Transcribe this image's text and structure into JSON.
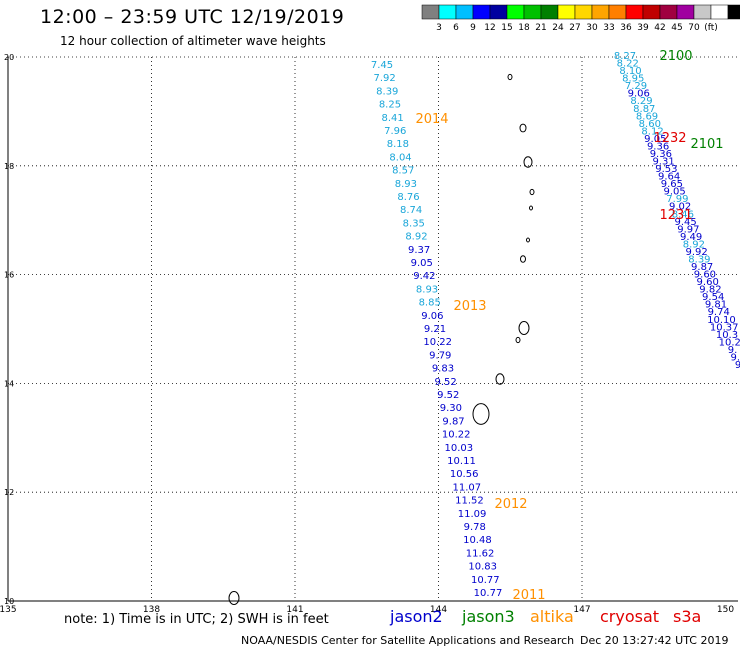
{
  "title": "12:00 – 23:59 UTC 12/19/2019",
  "subtitle": "12 hour collection of altimeter wave heights",
  "colorbar": {
    "colors": [
      "#808080",
      "#00ffff",
      "#00bfff",
      "#0000ff",
      "#0000a0",
      "#00ff00",
      "#00c000",
      "#008000",
      "#ffff00",
      "#ffd700",
      "#ffa500",
      "#ff7f00",
      "#ff0000",
      "#c00000",
      "#a00040",
      "#a000a0",
      "#c8c8c8",
      "#ffffff",
      "#000000"
    ],
    "labels": [
      "3",
      "6",
      "9",
      "12",
      "15",
      "18",
      "21",
      "24",
      "27",
      "30",
      "33",
      "36",
      "39",
      "42",
      "45",
      "70",
      "(ft)"
    ]
  },
  "lon_labels": [
    "135",
    "138",
    "141",
    "144",
    "147",
    "150"
  ],
  "lat_labels": [
    "20",
    "18",
    "16",
    "14",
    "12",
    "10"
  ],
  "colors": {
    "cyan": "#1aa6d9",
    "blue": "#0000cc",
    "orange": "#ff9000",
    "green": "#008000",
    "red": "#e00000"
  },
  "track_labels": [
    {
      "text": "2014",
      "color": "orange"
    },
    {
      "text": "2013",
      "color": "orange"
    },
    {
      "text": "2012",
      "color": "orange"
    },
    {
      "text": "2011",
      "color": "orange"
    },
    {
      "text": "2100",
      "color": "green"
    },
    {
      "text": "2101",
      "color": "green"
    },
    {
      "text": "1232",
      "color": "red"
    },
    {
      "text": "1231",
      "color": "red"
    }
  ],
  "track_a": [
    [
      "7.45",
      "cyan"
    ],
    [
      "7.92",
      "cyan"
    ],
    [
      "8.39",
      "cyan"
    ],
    [
      "8.25",
      "cyan"
    ],
    [
      "8.41",
      "cyan"
    ],
    [
      "7.96",
      "cyan"
    ],
    [
      "8.18",
      "cyan"
    ],
    [
      "8.04",
      "cyan"
    ],
    [
      "8.57",
      "cyan"
    ],
    [
      "8.93",
      "cyan"
    ],
    [
      "8.76",
      "cyan"
    ],
    [
      "8.74",
      "cyan"
    ],
    [
      "8.35",
      "cyan"
    ],
    [
      "8.92",
      "cyan"
    ],
    [
      "9.37",
      "blue"
    ],
    [
      "9.05",
      "blue"
    ],
    [
      "9.42",
      "blue"
    ],
    [
      "8.93",
      "cyan"
    ],
    [
      "8.85",
      "cyan"
    ],
    [
      "9.06",
      "blue"
    ],
    [
      "9.21",
      "blue"
    ],
    [
      "10.22",
      "blue"
    ],
    [
      "9.79",
      "blue"
    ],
    [
      "9.83",
      "blue"
    ],
    [
      "9.52",
      "blue"
    ],
    [
      "9.52",
      "blue"
    ],
    [
      "9.30",
      "blue"
    ],
    [
      "9.87",
      "blue"
    ],
    [
      "10.22",
      "blue"
    ],
    [
      "10.03",
      "blue"
    ],
    [
      "10.11",
      "blue"
    ],
    [
      "10.56",
      "blue"
    ],
    [
      "11.07",
      "blue"
    ],
    [
      "11.52",
      "blue"
    ],
    [
      "11.09",
      "blue"
    ],
    [
      "9.78",
      "blue"
    ],
    [
      "10.48",
      "blue"
    ],
    [
      "11.62",
      "blue"
    ],
    [
      "10.83",
      "blue"
    ],
    [
      "10.77",
      "blue"
    ],
    [
      "10.77",
      "blue"
    ]
  ],
  "track_b": [
    [
      "8.27",
      "cyan"
    ],
    [
      "8.22",
      "cyan"
    ],
    [
      "8.10",
      "cyan"
    ],
    [
      "8.95",
      "cyan"
    ],
    [
      "7.29",
      "cyan"
    ],
    [
      "9.06",
      "blue"
    ],
    [
      "8.29",
      "cyan"
    ],
    [
      "8.87",
      "cyan"
    ],
    [
      "8.69",
      "cyan"
    ],
    [
      "8.60",
      "cyan"
    ],
    [
      "8.12",
      "cyan"
    ],
    [
      "9.05",
      "blue"
    ],
    [
      "9.36",
      "blue"
    ],
    [
      "9.36",
      "blue"
    ],
    [
      "9.31",
      "blue"
    ],
    [
      "9.53",
      "blue"
    ],
    [
      "9.64",
      "blue"
    ],
    [
      "9.65",
      "blue"
    ],
    [
      "9.05",
      "blue"
    ],
    [
      "7.99",
      "cyan"
    ],
    [
      "9.02",
      "blue"
    ],
    [
      "8.46",
      "cyan"
    ],
    [
      "9.45",
      "blue"
    ],
    [
      "9.97",
      "blue"
    ],
    [
      "9.49",
      "blue"
    ],
    [
      "8.92",
      "cyan"
    ],
    [
      "9.92",
      "blue"
    ],
    [
      "8.39",
      "cyan"
    ],
    [
      "9.87",
      "blue"
    ],
    [
      "9.60",
      "blue"
    ],
    [
      "9.60",
      "blue"
    ],
    [
      "9.82",
      "blue"
    ],
    [
      "9.54",
      "blue"
    ],
    [
      "9.81",
      "blue"
    ],
    [
      "9.74",
      "blue"
    ],
    [
      "10.10",
      "blue"
    ],
    [
      "10.37",
      "blue"
    ],
    [
      "10.3",
      "blue"
    ],
    [
      "10.2",
      "blue"
    ],
    [
      "9.",
      "blue"
    ],
    [
      "9.",
      "blue"
    ],
    [
      "9",
      "blue"
    ]
  ],
  "note": "note:  1) Time is in UTC;  2) SWH is in feet",
  "satellites": [
    {
      "name": "jason2",
      "color": "blue"
    },
    {
      "name": "jason3",
      "color": "green"
    },
    {
      "name": "altika",
      "color": "orange"
    },
    {
      "name": "cryosat",
      "color": "red"
    },
    {
      "name": "s3a",
      "color": "red"
    }
  ],
  "credit": "NOAA/NESDIS Center for Satellite Applications and Research",
  "timestamp": "Dec 20 13:27:42 UTC 2019"
}
